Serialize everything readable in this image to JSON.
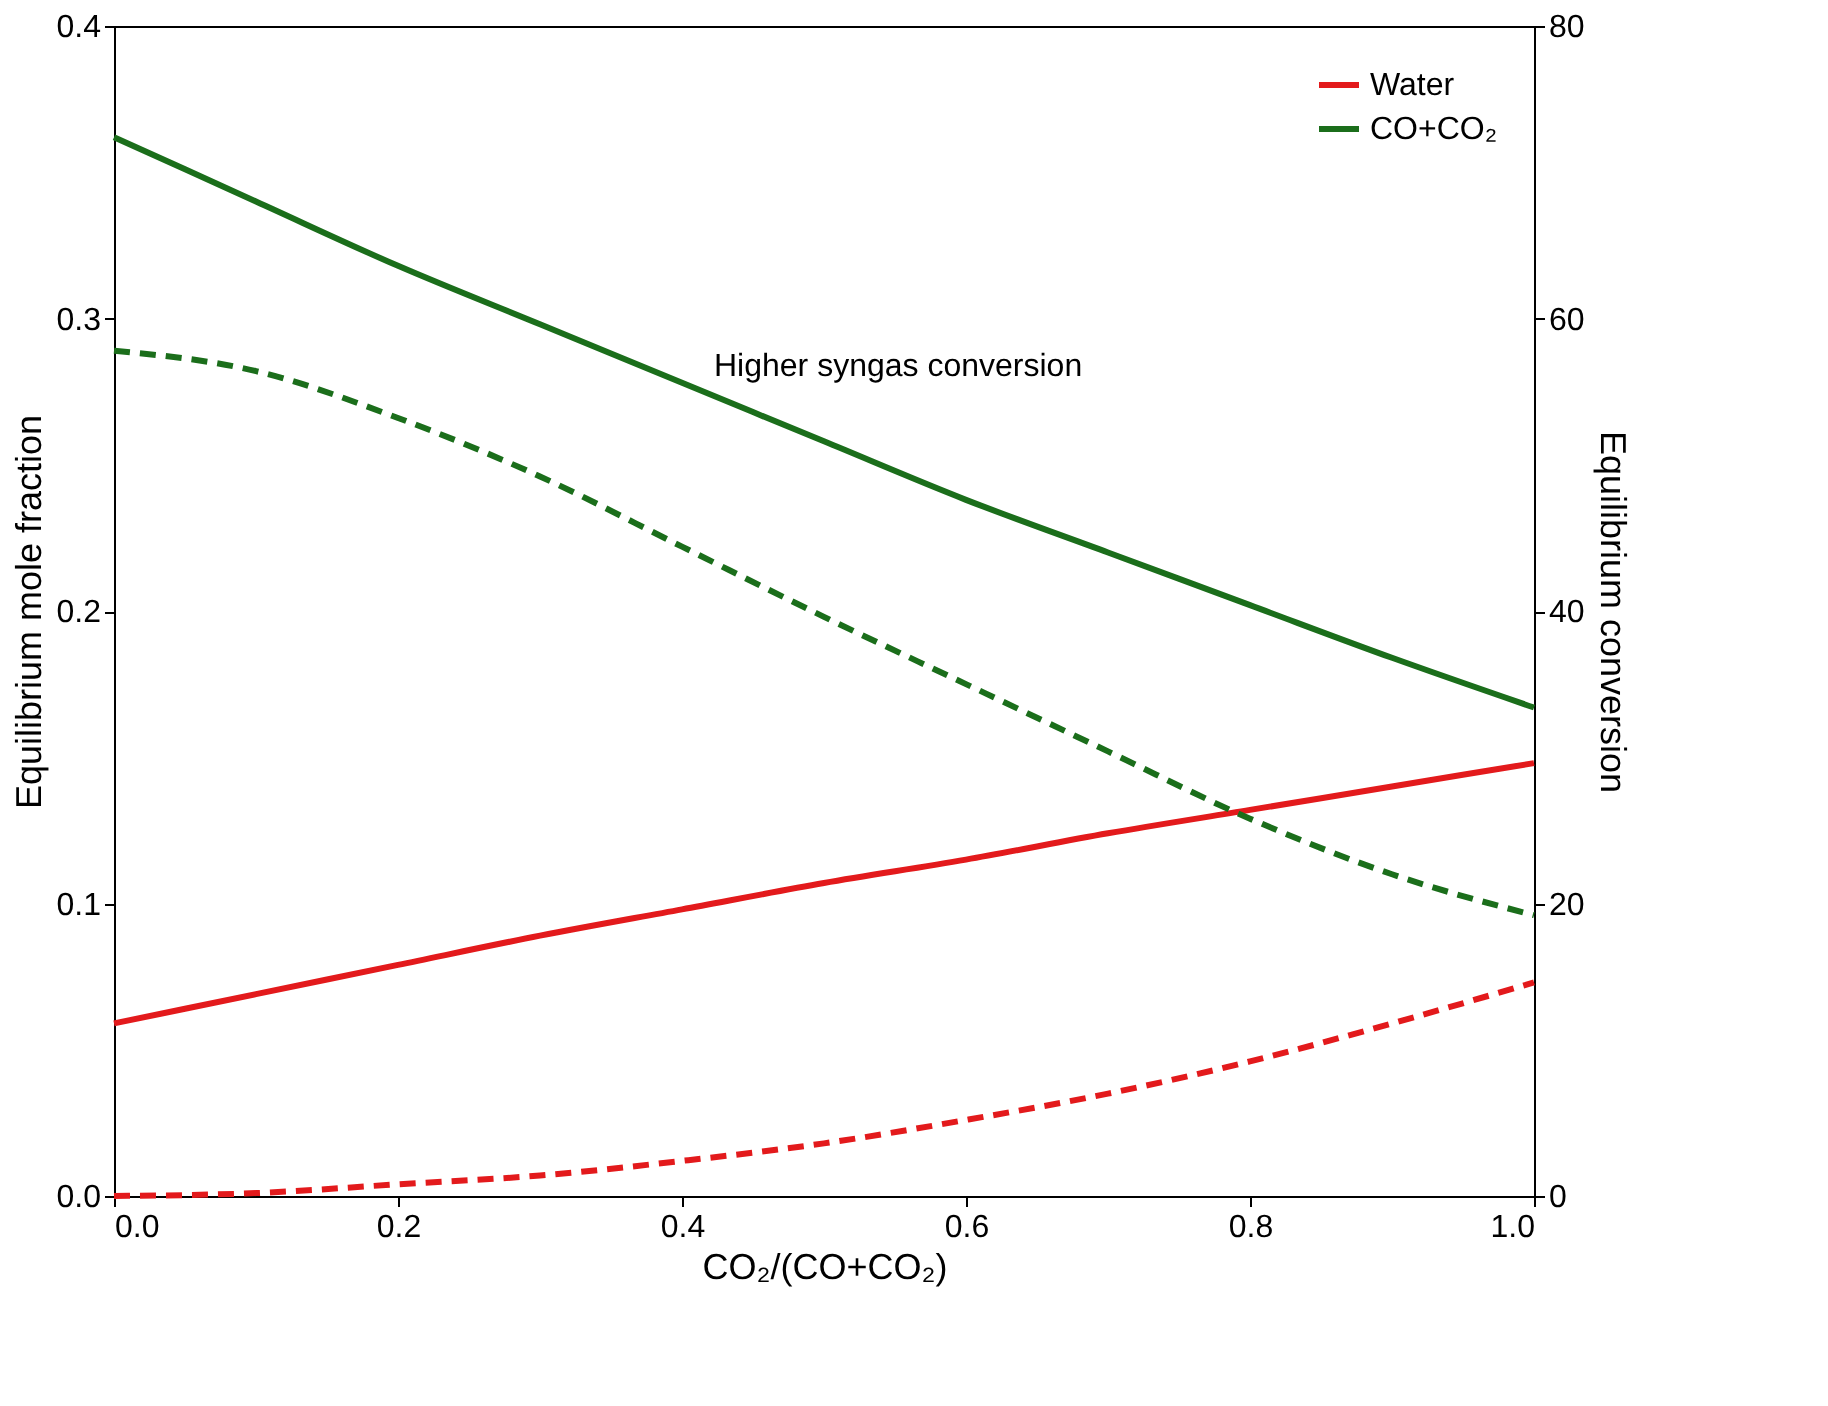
{
  "chart_data": {
    "type": "line",
    "xlabel": "CO₂/(CO+CO₂)",
    "ylabel": "Equilibrium mole fraction",
    "y2label": "Equilibrium conversion",
    "x": [
      0,
      0.1,
      0.2,
      0.3,
      0.4,
      0.5,
      0.6,
      0.7,
      0.8,
      0.9,
      1.0
    ],
    "series": [
      {
        "name": "Water",
        "color": "#e31a1c",
        "line_style": "solid",
        "values": [
          0.059,
          0.069,
          0.079,
          0.089,
          0.098,
          0.107,
          0.115,
          0.124,
          0.132,
          0.14,
          0.148
        ]
      },
      {
        "name": "CO+CO₂",
        "color": "#1b6e1b",
        "line_style": "solid",
        "axis": "y2",
        "values": [
          72.4,
          68.0,
          63.6,
          59.6,
          55.6,
          51.6,
          47.6,
          44.0,
          40.4,
          36.8,
          33.4
        ]
      },
      {
        "color": "#e31a1c",
        "line_style": "dashed",
        "values": [
          0.0,
          0.001,
          0.004,
          0.007,
          0.012,
          0.018,
          0.026,
          0.035,
          0.046,
          0.059,
          0.073
        ]
      },
      {
        "color": "#1b6e1b",
        "line_style": "dashed",
        "axis": "y2",
        "values": [
          57.8,
          56.4,
          53.2,
          49.2,
          44.4,
          39.6,
          35.0,
          30.4,
          25.8,
          22.0,
          19.2
        ]
      }
    ],
    "xlim": [
      0,
      1
    ],
    "xticks": [
      {
        "value": 0,
        "label": "0.0"
      },
      0.2,
      0.4,
      0.6,
      0.8,
      {
        "value": 1,
        "label": "1.0"
      }
    ],
    "ylim": [
      0,
      0.4
    ],
    "yticks": [
      {
        "value": 0,
        "label": "0.0"
      },
      0.1,
      0.2,
      0.3,
      0.4
    ],
    "y2lim": [
      0,
      80
    ],
    "y2ticks": [
      0,
      20,
      40,
      60,
      80
    ],
    "annotations": [
      "Higher syngas conversion"
    ],
    "legend": "top right",
    "grid": false,
    "marker": "none"
  }
}
